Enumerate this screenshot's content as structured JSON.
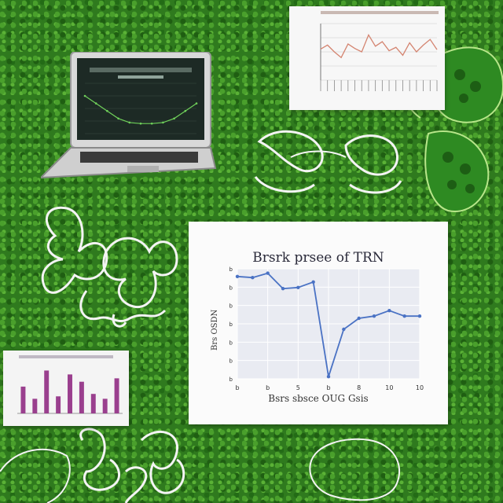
{
  "main_chart": {
    "chart_data": {
      "type": "line",
      "title": "Brsrk prsee of TRN",
      "xlabel": "Bsrs sbsce OUG Gsis",
      "ylabel": "Brs OSDN",
      "x_ticks": [
        "b",
        "b",
        "5",
        "b",
        "8",
        "10",
        "10"
      ],
      "y_ticks": [
        "b",
        "b",
        "b",
        "b",
        "b",
        "b",
        "b"
      ],
      "series": [
        {
          "values": [
            93,
            92,
            96,
            82,
            83,
            88,
            2,
            45,
            55,
            57,
            62,
            57,
            57
          ]
        }
      ],
      "ylim": [
        0,
        100
      ],
      "color": "#4a72c4",
      "grid": true
    }
  },
  "top_right_chart": {
    "chart_data": {
      "type": "line",
      "series": [
        {
          "values": [
            55,
            62,
            50,
            40,
            64,
            56,
            50,
            80,
            60,
            68,
            52,
            58,
            44,
            66,
            50,
            62,
            72,
            54
          ]
        }
      ],
      "ylim": [
        0,
        100
      ],
      "color": "#d48470",
      "grid": true
    }
  },
  "bottom_left_chart": {
    "chart_data": {
      "type": "bar",
      "series": [
        {
          "values": [
            55,
            30,
            88,
            35,
            80,
            65,
            40,
            30,
            72
          ]
        }
      ],
      "ylim": [
        0,
        100
      ],
      "color": "#9a3f8e"
    }
  },
  "laptop_screen": {
    "chart_data": {
      "type": "line",
      "series": [
        {
          "values": [
            75,
            60,
            45,
            30,
            22,
            20,
            20,
            22,
            30,
            45,
            60
          ]
        }
      ],
      "ylim": [
        0,
        100
      ],
      "color": "#6fd05a"
    }
  }
}
